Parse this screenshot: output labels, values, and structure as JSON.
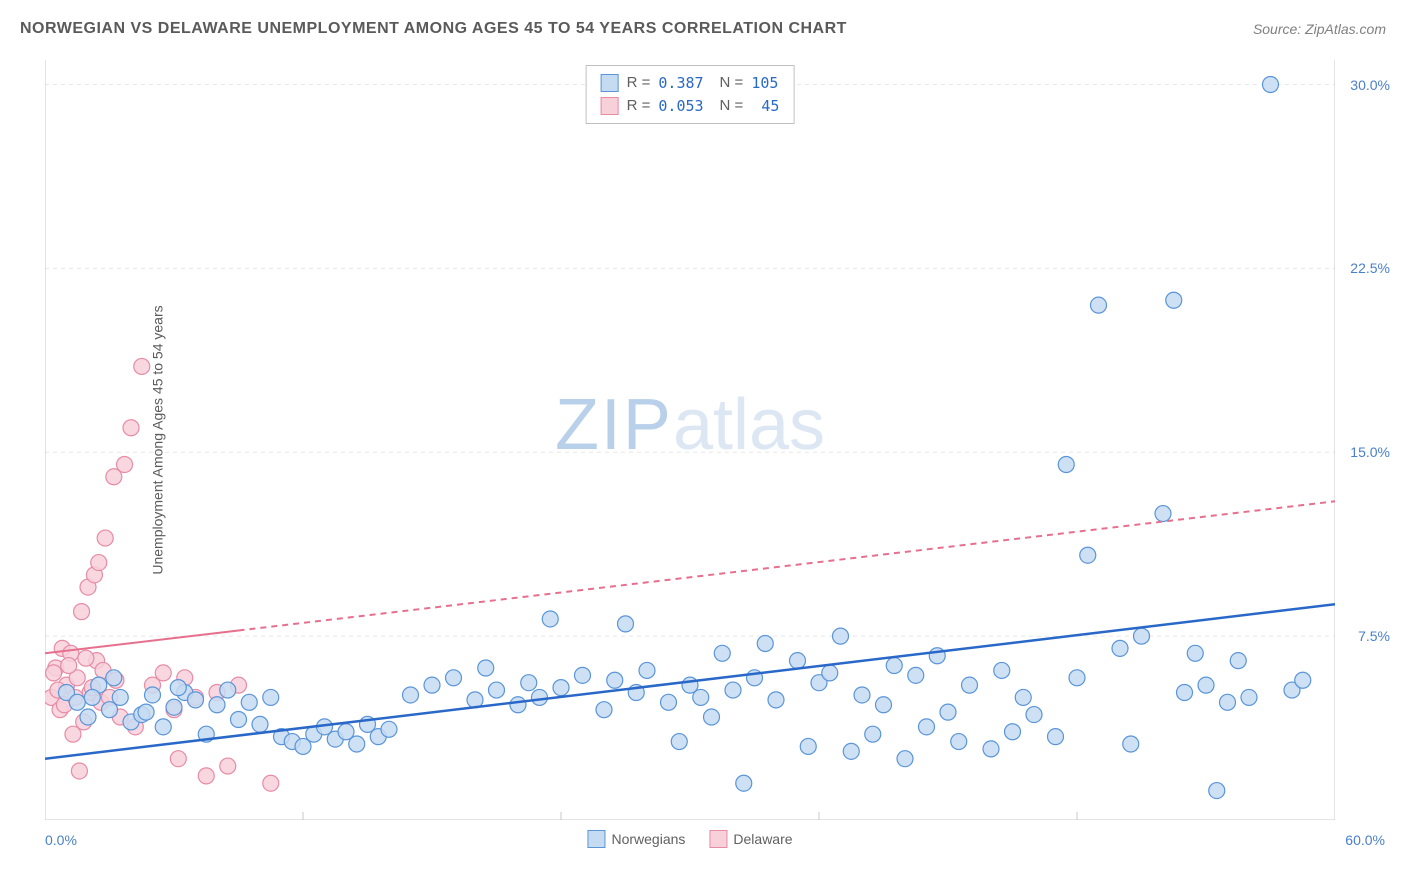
{
  "title": "NORWEGIAN VS DELAWARE UNEMPLOYMENT AMONG AGES 45 TO 54 YEARS CORRELATION CHART",
  "source": "Source: ZipAtlas.com",
  "y_axis_label": "Unemployment Among Ages 45 to 54 years",
  "watermark": {
    "part1": "ZIP",
    "part2": "atlas"
  },
  "chart": {
    "type": "scatter",
    "xlim": [
      0,
      60
    ],
    "ylim": [
      0,
      31
    ],
    "x_min_label": "0.0%",
    "x_max_label": "60.0%",
    "y_ticks": [
      7.5,
      15.0,
      22.5,
      30.0
    ],
    "y_tick_labels": [
      "7.5%",
      "15.0%",
      "22.5%",
      "30.0%"
    ],
    "x_ticks": [
      0,
      12,
      24,
      36,
      48,
      60
    ],
    "grid_color": "#e8e8e8",
    "axis_color": "#c8c8c8",
    "marker_radius": 8,
    "marker_stroke_width": 1.2,
    "series": [
      {
        "name": "Norwegians",
        "fill": "#c5dbf2",
        "stroke": "#5a95d8",
        "line_color": "#2968c8",
        "line_width": 2.5,
        "line_dash": "",
        "r_label": "R =",
        "r_value": "0.387",
        "n_label": "N =",
        "n_value": "105",
        "trend": {
          "x1": 0,
          "y1": 2.5,
          "x2": 60,
          "y2": 8.8
        },
        "trend_solid_until_x": 60,
        "points": [
          [
            1,
            5.2
          ],
          [
            1.5,
            4.8
          ],
          [
            2,
            4.2
          ],
          [
            2.5,
            5.5
          ],
          [
            3,
            4.5
          ],
          [
            3.5,
            5.0
          ],
          [
            4,
            4.0
          ],
          [
            4.5,
            4.3
          ],
          [
            5,
            5.1
          ],
          [
            5.5,
            3.8
          ],
          [
            6,
            4.6
          ],
          [
            6.5,
            5.2
          ],
          [
            7,
            4.9
          ],
          [
            7.5,
            3.5
          ],
          [
            8,
            4.7
          ],
          [
            8.5,
            5.3
          ],
          [
            9,
            4.1
          ],
          [
            9.5,
            4.8
          ],
          [
            10,
            3.9
          ],
          [
            10.5,
            5.0
          ],
          [
            11,
            3.4
          ],
          [
            11.5,
            3.2
          ],
          [
            12,
            3.0
          ],
          [
            12.5,
            3.5
          ],
          [
            13,
            3.8
          ],
          [
            13.5,
            3.3
          ],
          [
            14,
            3.6
          ],
          [
            14.5,
            3.1
          ],
          [
            15,
            3.9
          ],
          [
            15.5,
            3.4
          ],
          [
            16,
            3.7
          ],
          [
            17,
            5.1
          ],
          [
            18,
            5.5
          ],
          [
            19,
            5.8
          ],
          [
            20,
            4.9
          ],
          [
            20.5,
            6.2
          ],
          [
            21,
            5.3
          ],
          [
            22,
            4.7
          ],
          [
            22.5,
            5.6
          ],
          [
            23,
            5.0
          ],
          [
            23.5,
            8.2
          ],
          [
            24,
            5.4
          ],
          [
            25,
            5.9
          ],
          [
            26,
            4.5
          ],
          [
            26.5,
            5.7
          ],
          [
            27,
            8.0
          ],
          [
            27.5,
            5.2
          ],
          [
            28,
            6.1
          ],
          [
            29,
            4.8
          ],
          [
            29.5,
            3.2
          ],
          [
            30,
            5.5
          ],
          [
            30.5,
            5.0
          ],
          [
            31,
            4.2
          ],
          [
            31.5,
            6.8
          ],
          [
            32,
            5.3
          ],
          [
            32.5,
            1.5
          ],
          [
            33,
            5.8
          ],
          [
            33.5,
            7.2
          ],
          [
            34,
            4.9
          ],
          [
            35,
            6.5
          ],
          [
            35.5,
            3.0
          ],
          [
            36,
            5.6
          ],
          [
            36.5,
            6.0
          ],
          [
            37,
            7.5
          ],
          [
            37.5,
            2.8
          ],
          [
            38,
            5.1
          ],
          [
            38.5,
            3.5
          ],
          [
            39,
            4.7
          ],
          [
            39.5,
            6.3
          ],
          [
            40,
            2.5
          ],
          [
            40.5,
            5.9
          ],
          [
            41,
            3.8
          ],
          [
            41.5,
            6.7
          ],
          [
            42,
            4.4
          ],
          [
            42.5,
            3.2
          ],
          [
            43,
            5.5
          ],
          [
            44,
            2.9
          ],
          [
            44.5,
            6.1
          ],
          [
            45,
            3.6
          ],
          [
            45.5,
            5.0
          ],
          [
            46,
            4.3
          ],
          [
            47,
            3.4
          ],
          [
            47.5,
            14.5
          ],
          [
            48,
            5.8
          ],
          [
            48.5,
            10.8
          ],
          [
            49,
            21.0
          ],
          [
            50,
            7.0
          ],
          [
            50.5,
            3.1
          ],
          [
            51,
            7.5
          ],
          [
            52,
            12.5
          ],
          [
            52.5,
            21.2
          ],
          [
            53,
            5.2
          ],
          [
            53.5,
            6.8
          ],
          [
            54,
            5.5
          ],
          [
            54.5,
            1.2
          ],
          [
            55,
            4.8
          ],
          [
            55.5,
            6.5
          ],
          [
            56,
            5.0
          ],
          [
            57,
            30.0
          ],
          [
            58,
            5.3
          ],
          [
            58.5,
            5.7
          ],
          [
            6.2,
            5.4
          ],
          [
            3.2,
            5.8
          ],
          [
            4.7,
            4.4
          ],
          [
            2.2,
            5.0
          ]
        ]
      },
      {
        "name": "Delaware",
        "fill": "#f7d0da",
        "stroke": "#e88ba5",
        "line_color": "#e76f8e",
        "line_width": 2,
        "line_dash": "6,5",
        "r_label": "R =",
        "r_value": "0.053",
        "n_label": "N =",
        "n_value": "45",
        "trend": {
          "x1": 0,
          "y1": 6.8,
          "x2": 60,
          "y2": 13.0
        },
        "trend_solid_until_x": 9,
        "points": [
          [
            0.3,
            5.0
          ],
          [
            0.5,
            6.2
          ],
          [
            0.7,
            4.5
          ],
          [
            0.8,
            7.0
          ],
          [
            1.0,
            5.5
          ],
          [
            1.2,
            6.8
          ],
          [
            1.3,
            3.5
          ],
          [
            1.5,
            5.8
          ],
          [
            1.6,
            2.0
          ],
          [
            1.7,
            8.5
          ],
          [
            1.8,
            4.0
          ],
          [
            2.0,
            9.5
          ],
          [
            2.1,
            5.2
          ],
          [
            2.3,
            10.0
          ],
          [
            2.4,
            6.5
          ],
          [
            2.5,
            10.5
          ],
          [
            2.6,
            4.8
          ],
          [
            2.8,
            11.5
          ],
          [
            3.0,
            5.0
          ],
          [
            3.2,
            14.0
          ],
          [
            3.5,
            4.2
          ],
          [
            3.7,
            14.5
          ],
          [
            4.0,
            16.0
          ],
          [
            4.2,
            3.8
          ],
          [
            4.5,
            18.5
          ],
          [
            5.0,
            5.5
          ],
          [
            5.5,
            6.0
          ],
          [
            6.0,
            4.5
          ],
          [
            6.2,
            2.5
          ],
          [
            6.5,
            5.8
          ],
          [
            7.0,
            5.0
          ],
          [
            7.5,
            1.8
          ],
          [
            8.0,
            5.2
          ],
          [
            8.5,
            2.2
          ],
          [
            9.0,
            5.5
          ],
          [
            10.5,
            1.5
          ],
          [
            0.4,
            6.0
          ],
          [
            0.6,
            5.3
          ],
          [
            0.9,
            4.7
          ],
          [
            1.1,
            6.3
          ],
          [
            1.4,
            5.0
          ],
          [
            1.9,
            6.6
          ],
          [
            2.2,
            5.4
          ],
          [
            2.7,
            6.1
          ],
          [
            3.3,
            5.7
          ]
        ]
      }
    ]
  }
}
